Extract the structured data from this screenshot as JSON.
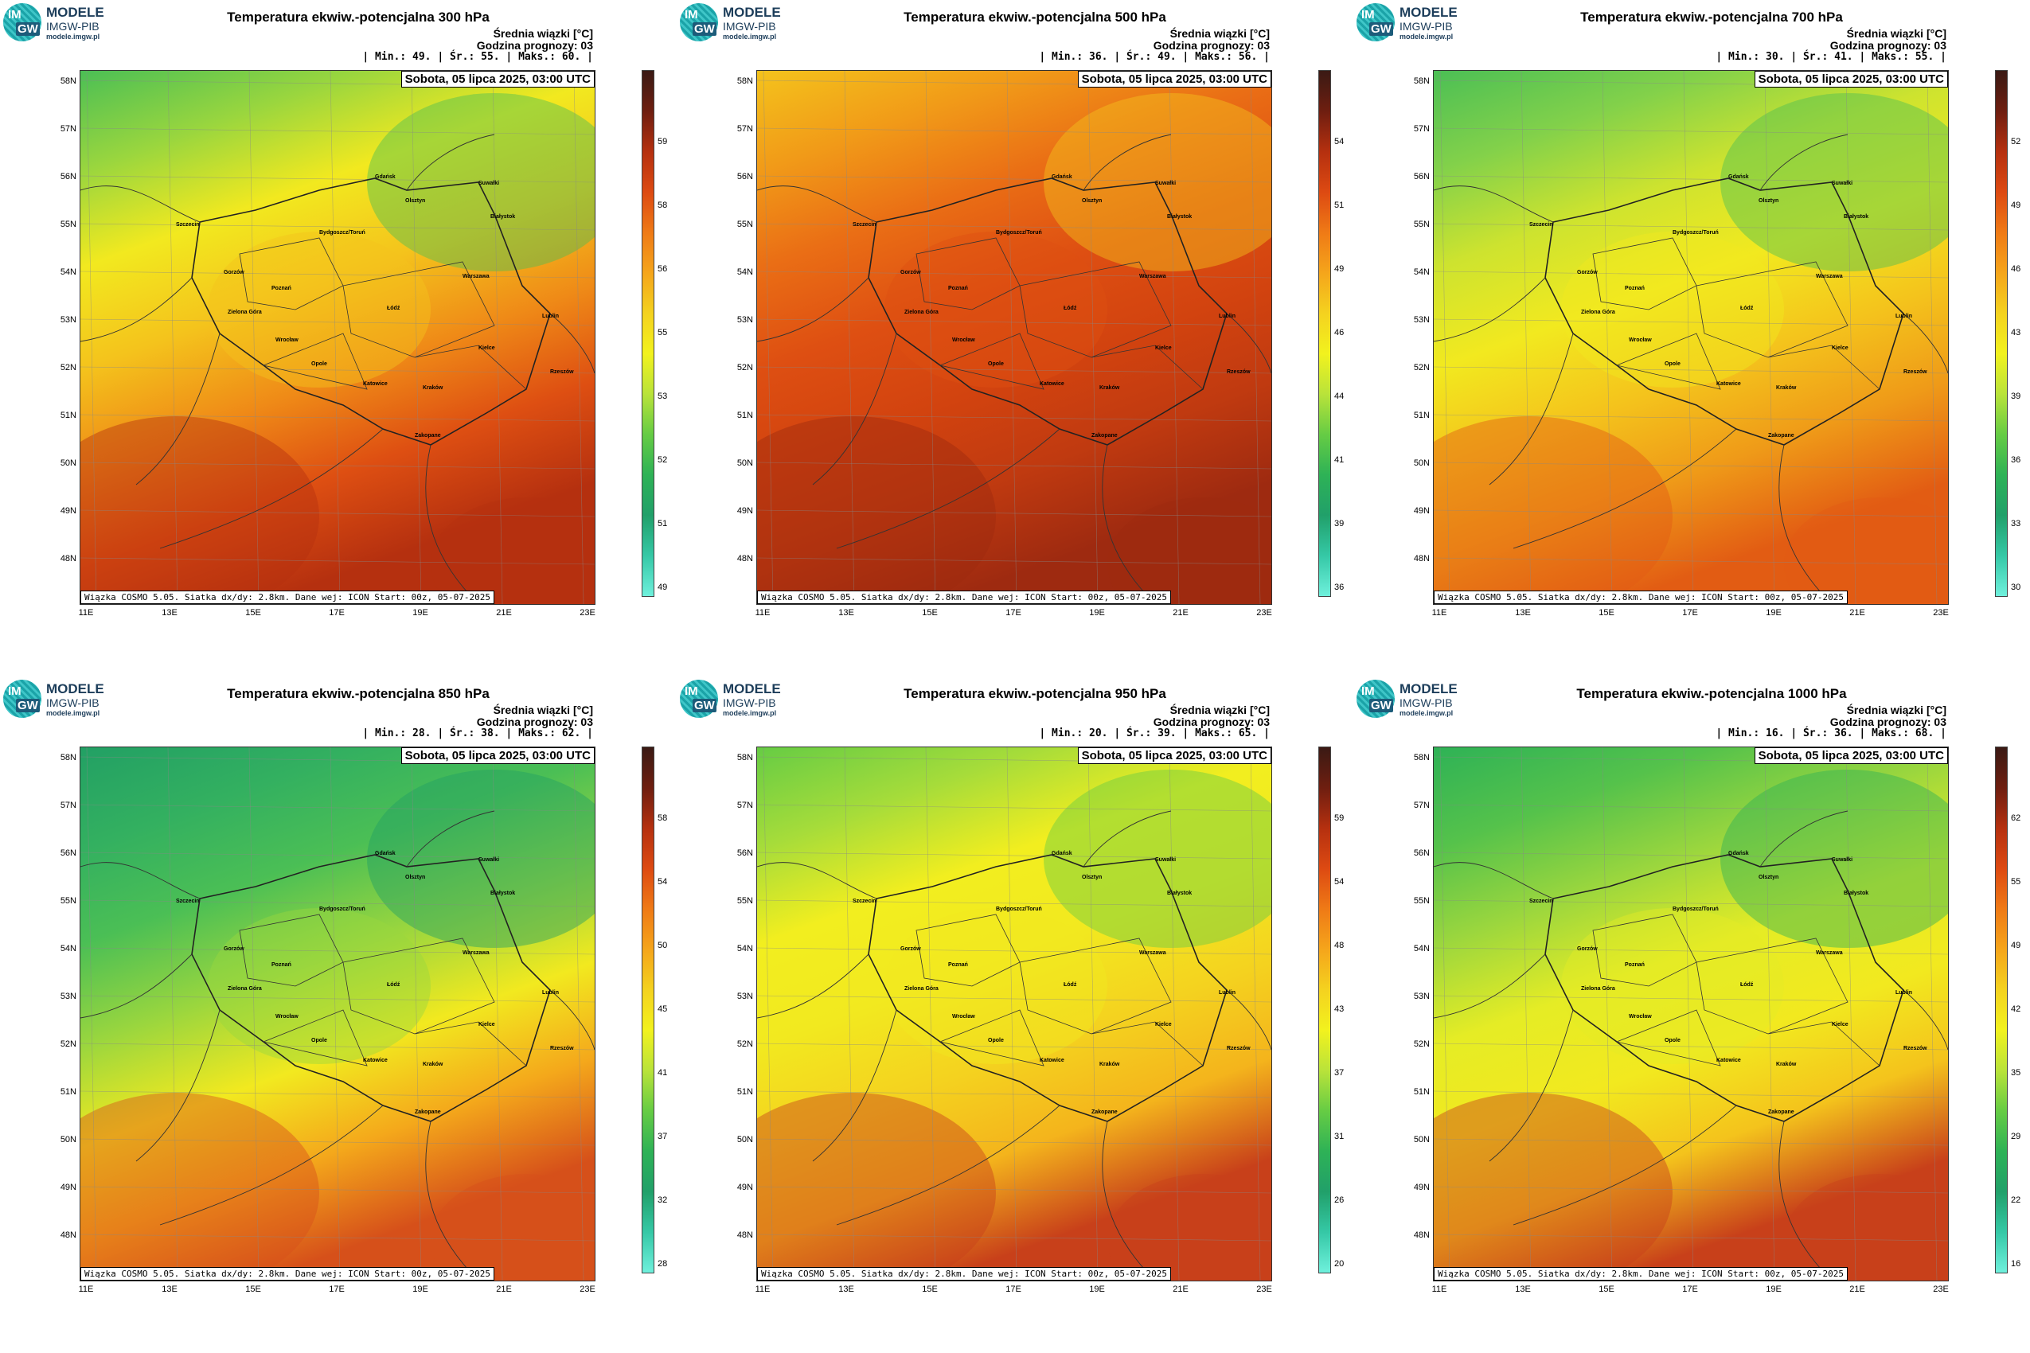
{
  "common": {
    "logo_line1": "MODELE",
    "logo_line2": "IMGW-PIB",
    "logo_line3": "modele.imgw.pl",
    "logo_badge_top": "IM",
    "logo_badge_bottom": "GW",
    "subtitle_mean": "Średnia wiązki [°C]",
    "forecast_hour": "Godzina prognozy: 03",
    "date": "Sobota, 05 lipca 2025, 03:00 UTC",
    "footer": "Wiązka COSMO 5.05. Siatka dx/dy: 2.8km. Dane wej: ICON Start: 00z, 05-07-2025",
    "lat_labels": [
      "58N",
      "57N",
      "56N",
      "55N",
      "54N",
      "53N",
      "52N",
      "51N",
      "50N",
      "49N",
      "48N"
    ],
    "lon_labels": [
      "11E",
      "13E",
      "15E",
      "17E",
      "19E",
      "21E",
      "23E"
    ],
    "cities": [
      {
        "name": "Gdańsk"
      },
      {
        "name": "Olsztyn"
      },
      {
        "name": "Suwałki"
      },
      {
        "name": "Białystok"
      },
      {
        "name": "Szczecin"
      },
      {
        "name": "Bydgoszcz/Toruń"
      },
      {
        "name": "Gorzów"
      },
      {
        "name": "Poznań"
      },
      {
        "name": "Warszawa"
      },
      {
        "name": "Zielona Góra"
      },
      {
        "name": "Łódź"
      },
      {
        "name": "Lublin"
      },
      {
        "name": "Wrocław"
      },
      {
        "name": "Kielce"
      },
      {
        "name": "Opole"
      },
      {
        "name": "Rzeszów"
      },
      {
        "name": "Katowice"
      },
      {
        "name": "Kraków"
      },
      {
        "name": "Zakopane"
      }
    ]
  },
  "panels": [
    {
      "title": "Temperatura ekwiw.-potencjalna 300 hPa",
      "stats": "| Min.:    49. | Śr.:    55. | Maks.:    60. |",
      "ticks": [
        "59",
        "58",
        "56",
        "55",
        "53",
        "52",
        "51",
        "49"
      ],
      "scheme": "warm"
    },
    {
      "title": "Temperatura ekwiw.-potencjalna 500 hPa",
      "stats": "| Min.:    36. | Śr.:    49. | Maks.:    56. |",
      "ticks": [
        "54",
        "51",
        "49",
        "46",
        "44",
        "41",
        "39",
        "36"
      ],
      "scheme": "hot"
    },
    {
      "title": "Temperatura ekwiw.-potencjalna 700 hPa",
      "stats": "| Min.:    30. | Śr.:    41. | Maks.:    55. |",
      "ticks": [
        "52",
        "49",
        "46",
        "43",
        "39",
        "36",
        "33",
        "30"
      ],
      "scheme": "mid"
    },
    {
      "title": "Temperatura ekwiw.-potencjalna 850 hPa",
      "stats": "| Min.:    28. | Śr.:    38. | Maks.:    62. |",
      "ticks": [
        "58",
        "54",
        "50",
        "45",
        "41",
        "37",
        "32",
        "28"
      ],
      "scheme": "green"
    },
    {
      "title": "Temperatura ekwiw.-potencjalna 950 hPa",
      "stats": "| Min.:    20. | Śr.:    39. | Maks.:    65. |",
      "ticks": [
        "59",
        "54",
        "48",
        "43",
        "37",
        "31",
        "26",
        "20"
      ],
      "scheme": "yellow"
    },
    {
      "title": "Temperatura ekwiw.-potencjalna 1000 hPa",
      "stats": "| Min.:    16. | Śr.:    36. | Maks.:    68. |",
      "ticks": [
        "62",
        "55",
        "49",
        "42",
        "35",
        "29",
        "22",
        "16"
      ],
      "scheme": "yellowgreen"
    }
  ],
  "colors": {
    "scale": [
      "#3a1a14",
      "#6e1e10",
      "#b5300f",
      "#dd4a12",
      "#ef7a16",
      "#f5a51b",
      "#f4d21f",
      "#f2f21e",
      "#b9e33a",
      "#66cc44",
      "#2eb256",
      "#21a06a",
      "#35c8a6",
      "#6ff0dc"
    ]
  }
}
